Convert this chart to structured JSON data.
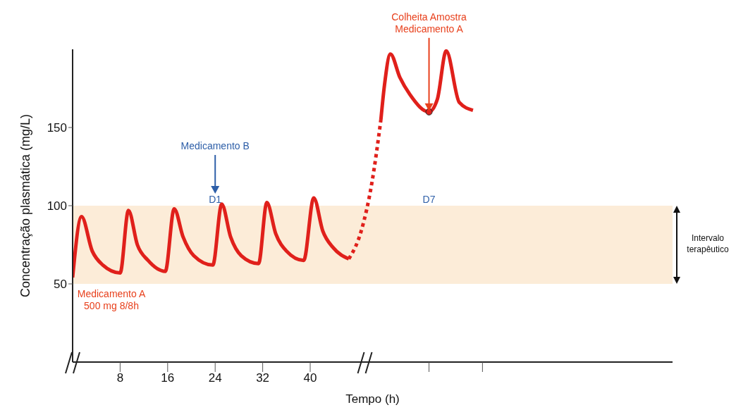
{
  "chart_data": {
    "type": "line",
    "xlabel": "Tempo (h)",
    "ylabel": "Concentração plasmática (mg/L)",
    "xlim": [
      0,
      101
    ],
    "xticks": [
      8,
      16,
      24,
      32,
      40,
      {
        "value": 60,
        "label": null
      },
      {
        "value": 69,
        "label": null
      }
    ],
    "ylim": [
      0,
      200
    ],
    "yticks": [
      50,
      100,
      150
    ],
    "grid": false,
    "legend": false,
    "marker": "none",
    "series": [
      {
        "color": "#e0201b",
        "line_style": "solid",
        "x": [
          0,
          1.5,
          3.3,
          5.1,
          8,
          9.4,
          10.9,
          12.7,
          15.6,
          17.1,
          18.6,
          20.4,
          23.6,
          25.1,
          26.6,
          28.4,
          31.3,
          32.7,
          34.2,
          36,
          38.9,
          40.6,
          42.1,
          43.9,
          46.5
        ],
        "values": [
          54,
          93,
          71,
          62,
          57,
          97,
          75,
          65,
          58,
          98,
          80,
          68,
          62,
          101,
          80,
          68,
          63,
          102,
          82,
          71,
          65,
          105,
          84,
          73,
          66
        ]
      },
      {
        "color": "#e0201b",
        "line_style": "dotted",
        "x": [
          46.5,
          48.6,
          50.4,
          51.9
        ],
        "values": [
          66,
          84,
          115,
          155
        ]
      },
      {
        "color": "#e0201b",
        "line_style": "solid",
        "x": [
          51.9,
          52.5,
          53.5,
          55.1,
          56.8,
          60,
          61.4,
          62.9,
          65.1,
          67.4
        ],
        "values": [
          155,
          177,
          197,
          182,
          171,
          160,
          168,
          199,
          166,
          161
        ]
      },
      {
        "type": "scatter",
        "color": "#e0201b",
        "marker": "circle",
        "x": [
          60
        ],
        "values": [
          160
        ]
      }
    ],
    "bands": [
      {
        "axis": "y",
        "from": 50,
        "to": 100,
        "label": "Intervalo terapêutico",
        "color": "#fcecd8"
      }
    ],
    "annotations": [
      {
        "text": "Medicamento A\n500 mg 8/8h",
        "x": 0,
        "y": 54
      },
      "Medicamento B",
      {
        "text": "D1",
        "x": 24,
        "y": 100
      },
      {
        "text": "D7",
        "x": 60,
        "y": 100
      },
      "Colheita Amostra\nMedicamento A"
    ]
  }
}
